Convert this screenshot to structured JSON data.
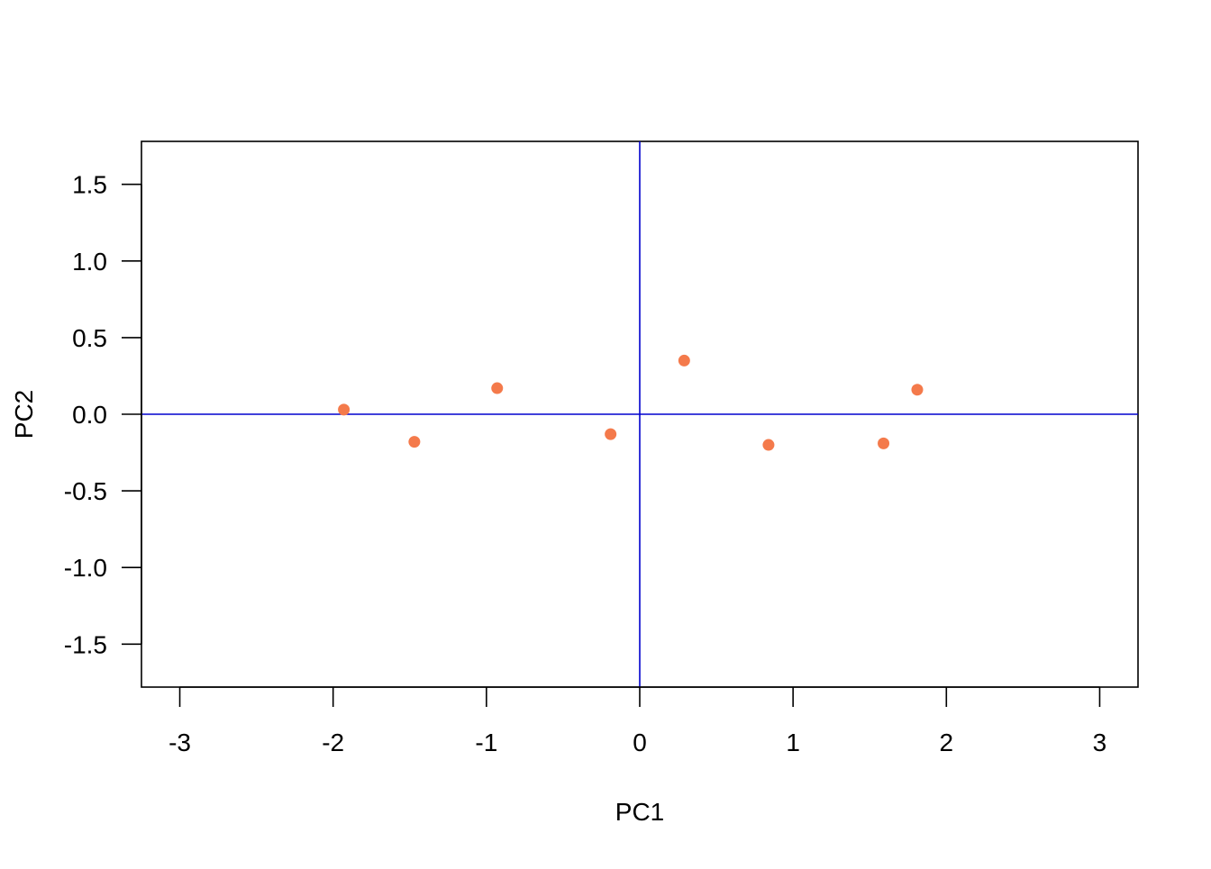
{
  "chart_data": {
    "type": "scatter",
    "title": "",
    "xlabel": "PC1",
    "ylabel": "PC2",
    "xlim": [
      -3.25,
      3.25
    ],
    "ylim": [
      -1.78,
      1.78
    ],
    "x_ticks": [
      -3,
      -2,
      -1,
      0,
      1,
      2,
      3
    ],
    "x_tick_labels": [
      "-3",
      "-2",
      "-1",
      "0",
      "1",
      "2",
      "3"
    ],
    "y_ticks": [
      -1.5,
      -1.0,
      -0.5,
      0.0,
      0.5,
      1.0,
      1.5
    ],
    "y_tick_labels": [
      "-1.5",
      "-1.0",
      "-0.5",
      "0.0",
      "0.5",
      "1.0",
      "1.5"
    ],
    "grid": false,
    "reference_lines": {
      "vertical_at_x": 0,
      "horizontal_at_y": 0,
      "color": "#0000CD"
    },
    "point_color": "#F47A4B",
    "series": [
      {
        "x": [
          -1.93,
          -1.47,
          -0.93,
          -0.19,
          0.29,
          0.84,
          1.59,
          1.81
        ],
        "y": [
          0.03,
          -0.18,
          0.17,
          -0.13,
          0.35,
          -0.2,
          -0.19,
          0.16
        ]
      }
    ]
  }
}
